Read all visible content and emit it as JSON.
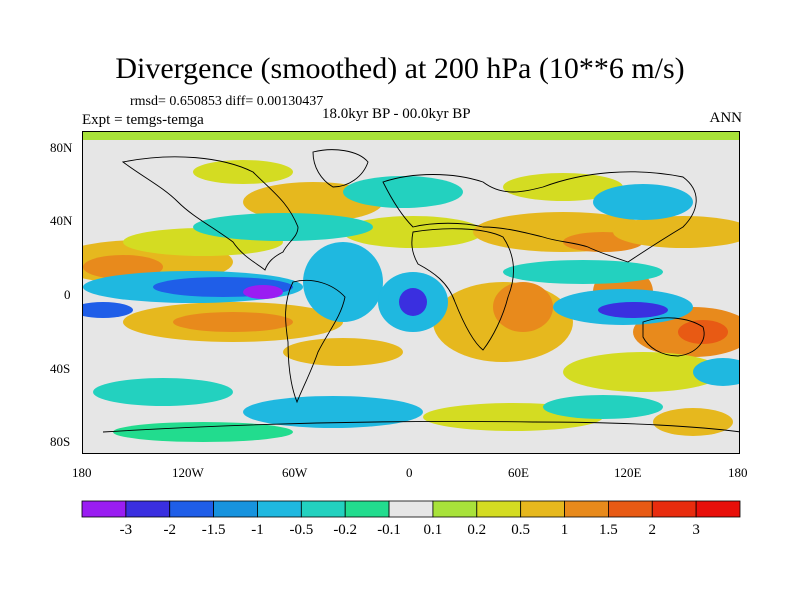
{
  "title": "Divergence (smoothed) at 200 hPa (10**6 m/s)",
  "stats": "rmsd= 0.650853  diff= 0.00130437",
  "experiment": "Expt = temgs-temga",
  "period": "18.0kyr BP - 00.0kyr BP",
  "season": "ANN",
  "axes": {
    "y_ticks": [
      "80N",
      "40N",
      "0",
      "40S",
      "80S"
    ],
    "x_ticks": [
      "180",
      "120W",
      "60W",
      "0",
      "60E",
      "120E",
      "180"
    ]
  },
  "colorbar": {
    "labels": [
      "-3",
      "-2",
      "-1.5",
      "-1",
      "-0.5",
      "-0.2",
      "-0.1",
      "0.1",
      "0.2",
      "0.5",
      "1",
      "1.5",
      "2",
      "3"
    ],
    "colors": [
      "#9a1df2",
      "#3a2fe0",
      "#1f5ee8",
      "#1793de",
      "#1fb8e0",
      "#23d1bf",
      "#22dc8e",
      "#e6e6e6",
      "#a8e23a",
      "#d4dc22",
      "#e6b81e",
      "#e88a1c",
      "#e85a14",
      "#e82c0e",
      "#e80f0a"
    ]
  },
  "colors": {
    "land_outline": "#000000",
    "no_change": "#e6e6e6"
  }
}
